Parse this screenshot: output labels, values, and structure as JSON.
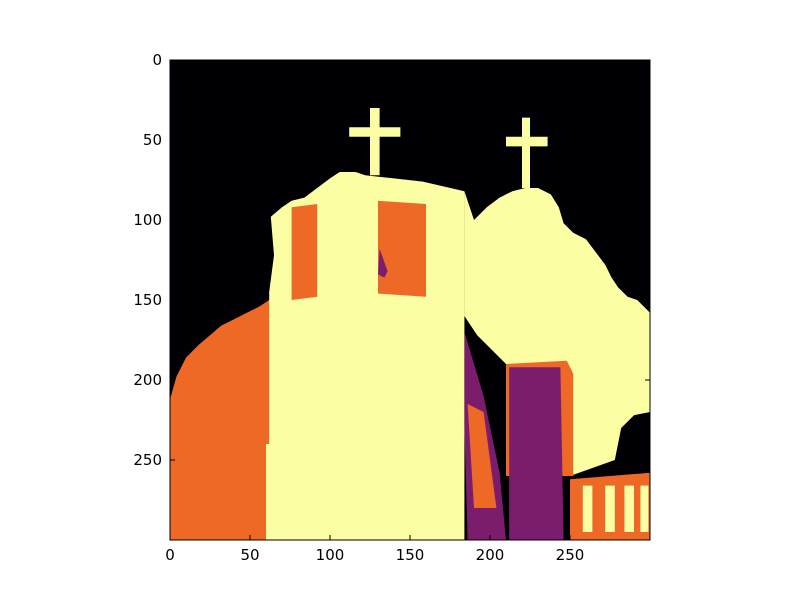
{
  "chart_data": {
    "type": "heatmap",
    "title": "",
    "xlabel": "",
    "ylabel": "",
    "xlim": [
      0,
      300
    ],
    "ylim": [
      300,
      0
    ],
    "x_ticks": [
      {
        "value": 0,
        "label": "0"
      },
      {
        "value": 50,
        "label": "50"
      },
      {
        "value": 100,
        "label": "100"
      },
      {
        "value": 150,
        "label": "150"
      },
      {
        "value": 200,
        "label": "200"
      },
      {
        "value": 250,
        "label": "250"
      }
    ],
    "y_ticks": [
      {
        "value": 0,
        "label": "0"
      },
      {
        "value": 50,
        "label": "50"
      },
      {
        "value": 100,
        "label": "100"
      },
      {
        "value": 150,
        "label": "150"
      },
      {
        "value": 200,
        "label": "200"
      },
      {
        "value": 250,
        "label": "250"
      }
    ],
    "colormap": "inferno",
    "levels": [
      {
        "level": 0,
        "color": "#000004"
      },
      {
        "level": 1,
        "color": "#7b1d6c"
      },
      {
        "level": 2,
        "color": "#ed6925"
      },
      {
        "level": 3,
        "color": "#fcfea4"
      }
    ],
    "grid": false,
    "image_regions": [
      {
        "name": "left-foliage",
        "level": 2,
        "points": [
          [
            0,
            300
          ],
          [
            0,
            212
          ],
          [
            4,
            198
          ],
          [
            10,
            186
          ],
          [
            18,
            178
          ],
          [
            25,
            172
          ],
          [
            32,
            166
          ],
          [
            40,
            162
          ],
          [
            48,
            158
          ],
          [
            56,
            154
          ],
          [
            62,
            150
          ],
          [
            68,
            150
          ],
          [
            68,
            300
          ]
        ]
      },
      {
        "name": "main-tower",
        "level": 3,
        "points": [
          [
            62,
            300
          ],
          [
            62,
            145
          ],
          [
            65,
            122
          ],
          [
            63,
            98
          ],
          [
            70,
            92
          ],
          [
            76,
            88
          ],
          [
            84,
            86
          ],
          [
            92,
            80
          ],
          [
            100,
            74
          ],
          [
            106,
            70
          ],
          [
            116,
            70
          ],
          [
            122,
            72
          ],
          [
            140,
            74
          ],
          [
            158,
            76
          ],
          [
            184,
            82
          ],
          [
            184,
            300
          ]
        ]
      },
      {
        "name": "left-cross-vertical",
        "level": 3,
        "points": [
          [
            125,
            30
          ],
          [
            131,
            30
          ],
          [
            131,
            72
          ],
          [
            125,
            72
          ]
        ]
      },
      {
        "name": "left-cross-bar",
        "level": 3,
        "points": [
          [
            112,
            42
          ],
          [
            144,
            42
          ],
          [
            144,
            48
          ],
          [
            112,
            48
          ]
        ]
      },
      {
        "name": "right-tower",
        "level": 3,
        "points": [
          [
            184,
            82
          ],
          [
            190,
            100
          ],
          [
            198,
            92
          ],
          [
            206,
            86
          ],
          [
            214,
            82
          ],
          [
            222,
            80
          ],
          [
            230,
            80
          ],
          [
            238,
            84
          ],
          [
            243,
            92
          ],
          [
            246,
            102
          ],
          [
            252,
            108
          ],
          [
            260,
            112
          ],
          [
            266,
            120
          ],
          [
            272,
            128
          ],
          [
            276,
            136
          ],
          [
            280,
            142
          ],
          [
            286,
            148
          ],
          [
            292,
            150
          ],
          [
            300,
            158
          ],
          [
            300,
            220
          ],
          [
            290,
            222
          ],
          [
            282,
            230
          ],
          [
            278,
            250
          ],
          [
            250,
            260
          ],
          [
            240,
            255
          ],
          [
            230,
            212
          ],
          [
            220,
            200
          ],
          [
            210,
            190
          ],
          [
            200,
            180
          ],
          [
            192,
            172
          ],
          [
            184,
            160
          ]
        ]
      },
      {
        "name": "right-cross-vertical",
        "level": 3,
        "points": [
          [
            220,
            36
          ],
          [
            225,
            36
          ],
          [
            225,
            80
          ],
          [
            220,
            80
          ]
        ]
      },
      {
        "name": "right-cross-bar",
        "level": 3,
        "points": [
          [
            210,
            48
          ],
          [
            236,
            48
          ],
          [
            236,
            54
          ],
          [
            210,
            54
          ]
        ]
      },
      {
        "name": "foreground-wall",
        "level": 3,
        "points": [
          [
            60,
            240
          ],
          [
            98,
            240
          ],
          [
            98,
            300
          ],
          [
            60,
            300
          ]
        ]
      },
      {
        "name": "belfry-opening-left",
        "level": 2,
        "points": [
          [
            76,
            92
          ],
          [
            92,
            90
          ],
          [
            92,
            148
          ],
          [
            76,
            150
          ]
        ]
      },
      {
        "name": "belfry-opening-center",
        "level": 2,
        "points": [
          [
            130,
            88
          ],
          [
            160,
            90
          ],
          [
            160,
            148
          ],
          [
            130,
            146
          ]
        ]
      },
      {
        "name": "belfry-shadow",
        "level": 1,
        "points": [
          [
            131,
            118
          ],
          [
            136,
            132
          ],
          [
            134,
            136
          ],
          [
            130,
            134
          ]
        ]
      },
      {
        "name": "door-orange",
        "level": 2,
        "points": [
          [
            210,
            190
          ],
          [
            248,
            188
          ],
          [
            252,
            196
          ],
          [
            252,
            260
          ],
          [
            210,
            260
          ]
        ]
      },
      {
        "name": "door-purple",
        "level": 1,
        "points": [
          [
            212,
            192
          ],
          [
            244,
            192
          ],
          [
            246,
            300
          ],
          [
            212,
            300
          ]
        ]
      },
      {
        "name": "porch-shadow",
        "level": 1,
        "points": [
          [
            184,
            170
          ],
          [
            196,
            210
          ],
          [
            206,
            258
          ],
          [
            210,
            300
          ],
          [
            186,
            300
          ],
          [
            184,
            230
          ]
        ]
      },
      {
        "name": "porch-orange",
        "level": 2,
        "points": [
          [
            186,
            215
          ],
          [
            196,
            220
          ],
          [
            204,
            280
          ],
          [
            190,
            280
          ]
        ]
      },
      {
        "name": "fence-base",
        "level": 2,
        "points": [
          [
            250,
            262
          ],
          [
            300,
            258
          ],
          [
            300,
            300
          ],
          [
            250,
            300
          ]
        ]
      },
      {
        "name": "fence-post-1",
        "level": 3,
        "points": [
          [
            258,
            266
          ],
          [
            264,
            266
          ],
          [
            264,
            295
          ],
          [
            258,
            295
          ]
        ]
      },
      {
        "name": "fence-post-2",
        "level": 3,
        "points": [
          [
            272,
            266
          ],
          [
            278,
            266
          ],
          [
            278,
            295
          ],
          [
            272,
            295
          ]
        ]
      },
      {
        "name": "fence-post-3",
        "level": 3,
        "points": [
          [
            284,
            266
          ],
          [
            290,
            266
          ],
          [
            290,
            295
          ],
          [
            284,
            295
          ]
        ]
      },
      {
        "name": "fence-post-4",
        "level": 3,
        "points": [
          [
            294,
            266
          ],
          [
            299,
            266
          ],
          [
            299,
            295
          ],
          [
            294,
            295
          ]
        ]
      }
    ]
  }
}
